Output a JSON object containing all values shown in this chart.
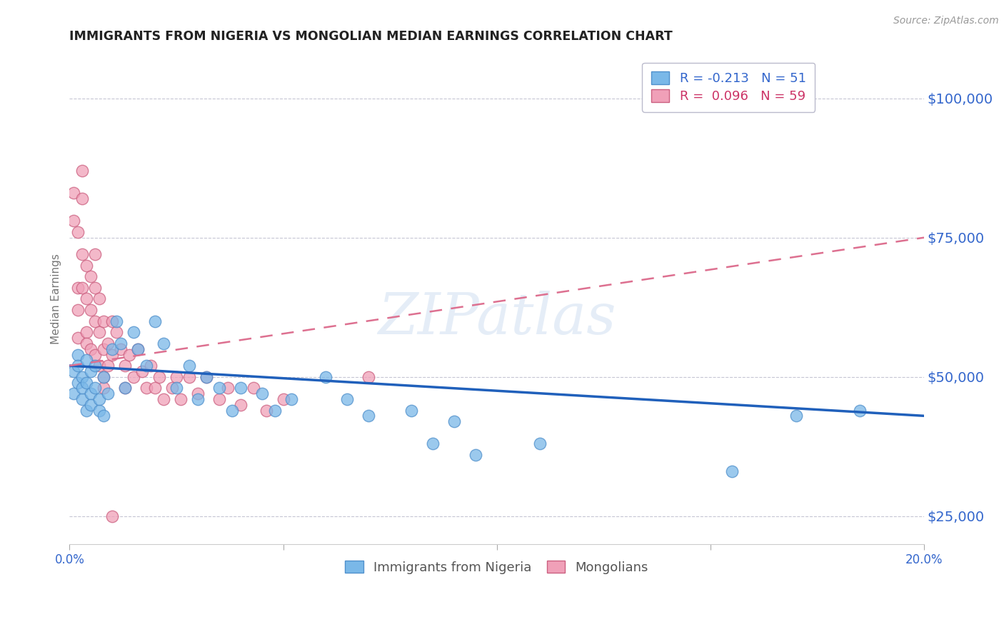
{
  "title": "IMMIGRANTS FROM NIGERIA VS MONGOLIAN MEDIAN EARNINGS CORRELATION CHART",
  "source_text": "Source: ZipAtlas.com",
  "ylabel": "Median Earnings",
  "xlim": [
    0.0,
    0.2
  ],
  "ylim": [
    20000,
    108000
  ],
  "yticks": [
    25000,
    50000,
    75000,
    100000
  ],
  "ytick_labels": [
    "$25,000",
    "$50,000",
    "$75,000",
    "$100,000"
  ],
  "xticks": [
    0.0,
    0.05,
    0.1,
    0.15,
    0.2
  ],
  "watermark": "ZIPatlas",
  "nigeria_color": "#7ab8e8",
  "nigeria_edge": "#5090cc",
  "nigeria_trend_color": "#2060bb",
  "mongolian_color": "#f0a0b8",
  "mongolian_edge": "#cc6080",
  "mongolian_trend_color": "#dd7090",
  "nigeria_x": [
    0.001,
    0.001,
    0.002,
    0.002,
    0.002,
    0.003,
    0.003,
    0.003,
    0.004,
    0.004,
    0.004,
    0.005,
    0.005,
    0.005,
    0.006,
    0.006,
    0.007,
    0.007,
    0.008,
    0.008,
    0.009,
    0.01,
    0.011,
    0.012,
    0.013,
    0.015,
    0.016,
    0.018,
    0.02,
    0.022,
    0.025,
    0.028,
    0.03,
    0.032,
    0.035,
    0.038,
    0.04,
    0.045,
    0.048,
    0.052,
    0.06,
    0.065,
    0.07,
    0.08,
    0.085,
    0.09,
    0.095,
    0.11,
    0.155,
    0.17,
    0.185
  ],
  "nigeria_y": [
    51000,
    47000,
    54000,
    49000,
    52000,
    46000,
    50000,
    48000,
    53000,
    44000,
    49000,
    47000,
    51000,
    45000,
    48000,
    52000,
    44000,
    46000,
    50000,
    43000,
    47000,
    55000,
    60000,
    56000,
    48000,
    58000,
    55000,
    52000,
    60000,
    56000,
    48000,
    52000,
    46000,
    50000,
    48000,
    44000,
    48000,
    47000,
    44000,
    46000,
    50000,
    46000,
    43000,
    44000,
    38000,
    42000,
    36000,
    38000,
    33000,
    43000,
    44000
  ],
  "mongolian_x": [
    0.001,
    0.001,
    0.002,
    0.002,
    0.002,
    0.002,
    0.003,
    0.003,
    0.003,
    0.003,
    0.004,
    0.004,
    0.004,
    0.004,
    0.005,
    0.005,
    0.005,
    0.006,
    0.006,
    0.006,
    0.006,
    0.007,
    0.007,
    0.007,
    0.008,
    0.008,
    0.008,
    0.009,
    0.009,
    0.01,
    0.01,
    0.011,
    0.012,
    0.013,
    0.013,
    0.014,
    0.015,
    0.016,
    0.017,
    0.018,
    0.019,
    0.02,
    0.021,
    0.022,
    0.024,
    0.025,
    0.026,
    0.028,
    0.03,
    0.032,
    0.035,
    0.037,
    0.04,
    0.043,
    0.046,
    0.05,
    0.07,
    0.01,
    0.008
  ],
  "mongolian_y": [
    83000,
    78000,
    76000,
    66000,
    62000,
    57000,
    87000,
    82000,
    72000,
    66000,
    70000,
    64000,
    58000,
    56000,
    68000,
    62000,
    55000,
    72000,
    66000,
    60000,
    54000,
    64000,
    58000,
    52000,
    60000,
    55000,
    50000,
    56000,
    52000,
    60000,
    54000,
    58000,
    55000,
    52000,
    48000,
    54000,
    50000,
    55000,
    51000,
    48000,
    52000,
    48000,
    50000,
    46000,
    48000,
    50000,
    46000,
    50000,
    47000,
    50000,
    46000,
    48000,
    45000,
    48000,
    44000,
    46000,
    50000,
    25000,
    48000
  ],
  "nigeria_trend_x0": 0.0,
  "nigeria_trend_y0": 52000,
  "nigeria_trend_x1": 0.2,
  "nigeria_trend_y1": 43000,
  "mongolian_trend_x0": 0.0,
  "mongolian_trend_y0": 52000,
  "mongolian_trend_x1": 0.2,
  "mongolian_trend_y1": 75000,
  "background_color": "#ffffff",
  "grid_color": "#c0c0d0",
  "title_color": "#222222",
  "tick_color": "#3366cc"
}
